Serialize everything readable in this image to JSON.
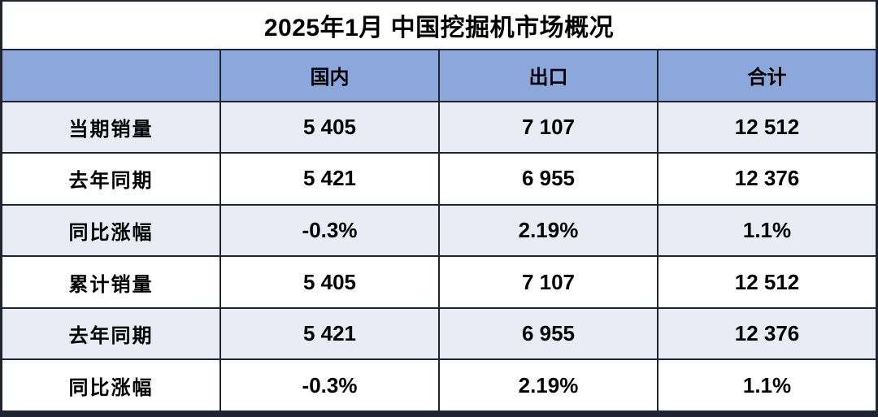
{
  "chart_data": {
    "type": "table",
    "title": "2025年1月 中国挖掘机市场概况",
    "columns": [
      "",
      "国内",
      "出口",
      "合计"
    ],
    "rows": [
      {
        "label": "当期销量",
        "values": [
          "5 405",
          "7 107",
          "12 512"
        ]
      },
      {
        "label": "去年同期",
        "values": [
          "5 421",
          "6 955",
          "12 376"
        ]
      },
      {
        "label": "同比涨幅",
        "values": [
          "-0.3%",
          "2.19%",
          "1.1%"
        ]
      },
      {
        "label": "累计销量",
        "values": [
          "5 405",
          "7 107",
          "12 512"
        ]
      },
      {
        "label": "去年同期",
        "values": [
          "5 421",
          "6 955",
          "12 376"
        ]
      },
      {
        "label": "同比涨幅",
        "values": [
          "-0.3%",
          "2.19%",
          "1.1%"
        ]
      }
    ],
    "layout": {
      "grid": "on",
      "alternating_rows": true,
      "header_position": "top"
    }
  },
  "colors": {
    "header_bg": "#8CA7DC",
    "row_alt_bg": "#E9ECF5",
    "row_bg": "#FFFFFF",
    "border_color": "#20242E",
    "text_color": "#000000"
  }
}
